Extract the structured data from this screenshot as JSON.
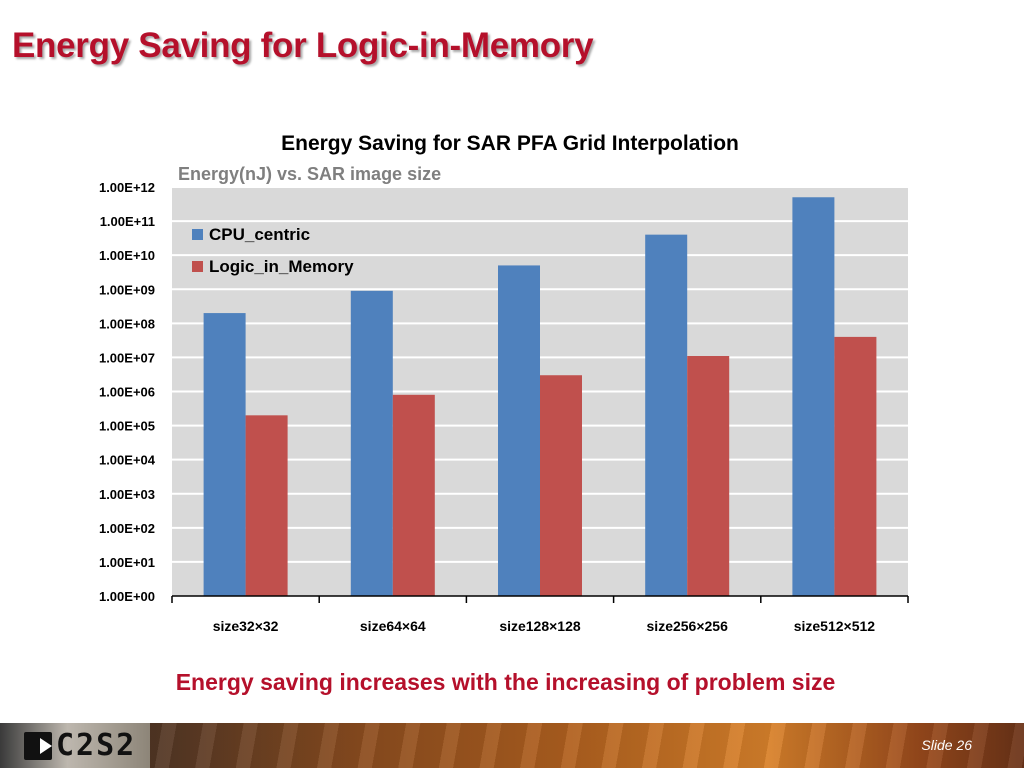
{
  "slide": {
    "title": "Energy Saving for Logic-in-Memory",
    "caption": "Energy saving increases with the increasing of problem size",
    "slide_number": "Slide 26",
    "logo_text": "C2S2"
  },
  "colors": {
    "title": "#b5102b",
    "plot_background": "#d9d9d9",
    "gridline": "#ffffff",
    "cpu": "#4f81bd",
    "lim": "#c0504d"
  },
  "chart_data": {
    "type": "bar",
    "title": "Energy Saving for SAR PFA Grid Interpolation",
    "subtitle": "Energy(nJ)  vs. SAR image size",
    "xlabel": "",
    "ylabel": "",
    "y_scale": "log10",
    "ylim": [
      1,
      1000000000000
    ],
    "y_ticks": [
      1,
      10,
      100,
      1000,
      10000,
      100000,
      1000000,
      10000000,
      100000000,
      1000000000,
      10000000000,
      100000000000,
      1000000000000
    ],
    "y_tick_labels": [
      "1.00E+00",
      "1.00E+01",
      "1.00E+02",
      "1.00E+03",
      "1.00E+04",
      "1.00E+05",
      "1.00E+06",
      "1.00E+07",
      "1.00E+08",
      "1.00E+09",
      "1.00E+10",
      "1.00E+11",
      "1.00E+12"
    ],
    "categories": [
      "size32×32",
      "size64×64",
      "size128×128",
      "size256×256",
      "size512×512"
    ],
    "series": [
      {
        "name": "CPU_centric",
        "values": [
          200000000,
          900000000,
          5000000000,
          40000000000,
          500000000000
        ]
      },
      {
        "name": "Logic_in_Memory",
        "values": [
          200000,
          800000,
          3000000,
          11000000,
          40000000
        ]
      }
    ],
    "legend": "top-left inside plot",
    "grid": true
  }
}
